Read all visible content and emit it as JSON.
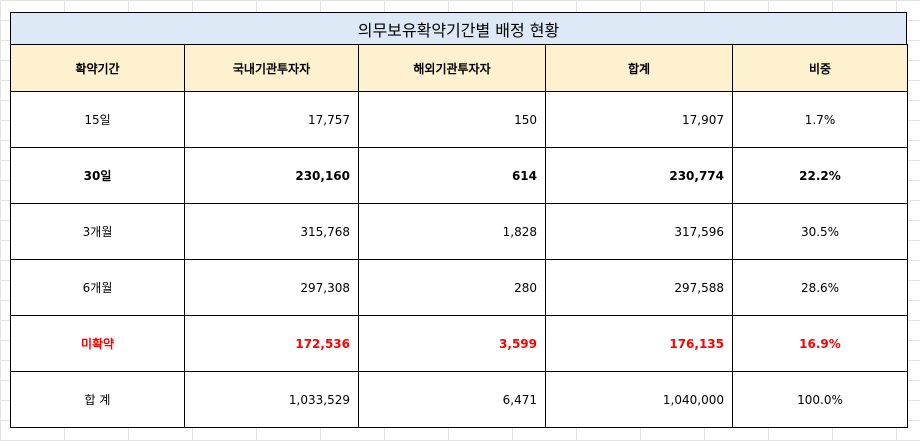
{
  "title": "의무보유확약기간별 배정 현황",
  "headers": [
    "확약기간",
    "국내기관투자자",
    "해외기관투자자",
    "합계",
    "비중"
  ],
  "rows": [
    {
      "period": "15일",
      "domestic": "17,757",
      "foreign": "150",
      "total": "17,907",
      "share": "1.7%",
      "style": "normal"
    },
    {
      "period": "30일",
      "domestic": "230,160",
      "foreign": "614",
      "total": "230,774",
      "share": "22.2%",
      "style": "bold"
    },
    {
      "period": "3개월",
      "domestic": "315,768",
      "foreign": "1,828",
      "total": "317,596",
      "share": "30.5%",
      "style": "normal"
    },
    {
      "period": "6개월",
      "domestic": "297,308",
      "foreign": "280",
      "total": "297,588",
      "share": "28.6%",
      "style": "normal"
    },
    {
      "period": "미확약",
      "domestic": "172,536",
      "foreign": "3,599",
      "total": "176,135",
      "share": "16.9%",
      "style": "red"
    },
    {
      "period": "합 계",
      "domestic": "1,033,529",
      "foreign": "6,471",
      "total": "1,040,000",
      "share": "100.0%",
      "style": "normal"
    }
  ],
  "colors": {
    "title_bg": "#dde9f7",
    "header_bg": "#fdf1cf",
    "highlight_red": "#ff0000"
  }
}
